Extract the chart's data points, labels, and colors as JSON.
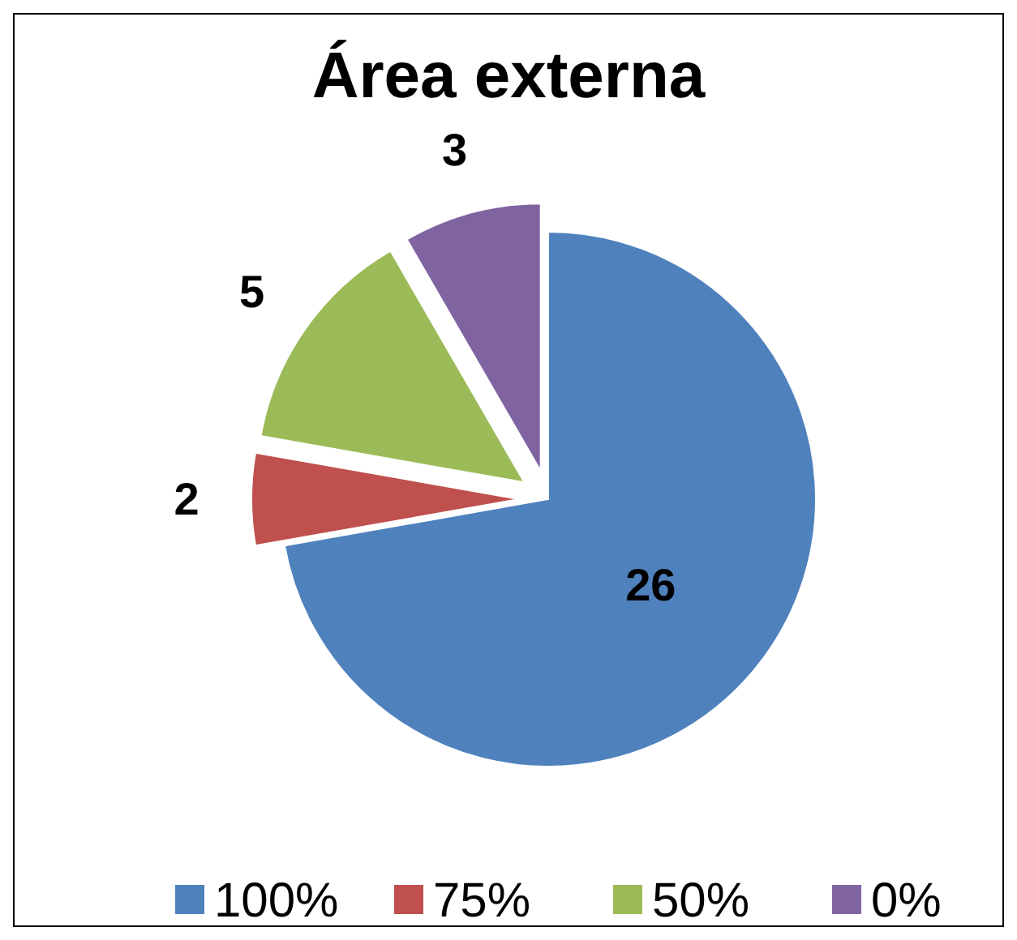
{
  "chart_data": {
    "type": "pie",
    "title": "Área externa",
    "categories": [
      "100%",
      "75%",
      "50%",
      "0%"
    ],
    "values": [
      26,
      2,
      5,
      3
    ],
    "colors": [
      "#4f81bd",
      "#c0504d",
      "#9bbb59",
      "#8064a2"
    ],
    "data_labels": true,
    "legend": "bottom"
  }
}
